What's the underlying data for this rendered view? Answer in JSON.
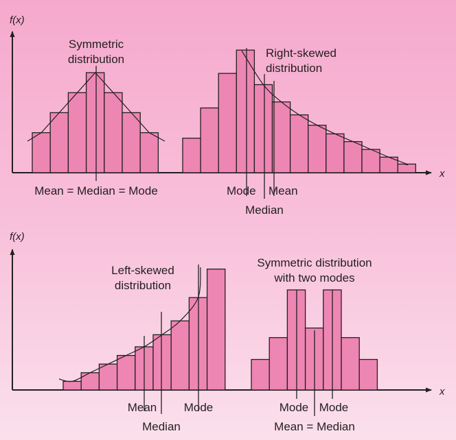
{
  "panels": {
    "top": {
      "y_axis_label": "f(x)",
      "x_axis_label": "x",
      "symmetric": {
        "title_line1": "Symmetric",
        "title_line2": "distribution",
        "marker_label": "Mean = Median = Mode"
      },
      "right_skewed": {
        "title_line1": "Right-skewed",
        "title_line2": "distribution",
        "mode_label": "Mode",
        "mean_label": "Mean",
        "median_label": "Median"
      }
    },
    "bottom": {
      "y_axis_label": "f(x)",
      "x_axis_label": "x",
      "left_skewed": {
        "title_line1": "Left-skewed",
        "title_line2": "distribution",
        "mean_label": "Mean",
        "mode_label": "Mode",
        "median_label": "Median"
      },
      "bimodal": {
        "title_line1": "Symmetric distribution",
        "title_line2": "with two modes",
        "mode_label_1": "Mode",
        "mode_label_2": "Mode",
        "marker_label": "Mean = Median"
      }
    }
  },
  "colors": {
    "bar_fill": "#ee86b4",
    "outline": "#231f20",
    "background_top": "#f6a9cd",
    "background_bottom": "#fbe0ec"
  },
  "chart_data": [
    {
      "type": "bar",
      "values": [
        4,
        6,
        8,
        10,
        8,
        6,
        4
      ],
      "marker": "Mean = Median = Mode",
      "xlabel": "x",
      "ylabel": "f(x)"
    },
    {
      "type": "bar",
      "values": [
        4,
        7.5,
        11.5,
        14.2,
        10.2,
        8.2,
        6.7,
        5.5,
        4.5,
        3.6,
        2.7,
        1.8,
        1.0
      ],
      "markers": [
        "Mode",
        "Median",
        "Mean"
      ],
      "xlabel": "x",
      "ylabel": "f(x)"
    },
    {
      "type": "bar",
      "values": [
        1.0,
        2.0,
        3.0,
        4.0,
        5.0,
        6.4,
        8.0,
        10.7,
        14.0
      ],
      "markers": [
        "Mean",
        "Median",
        "Mode"
      ],
      "xlabel": "x",
      "ylabel": "f(x)"
    },
    {
      "type": "bar",
      "values": [
        3.2,
        5.5,
        10.5,
        6.5,
        10.5,
        5.5,
        3.2
      ],
      "markers": [
        "Mode",
        "Mean = Median",
        "Mode"
      ],
      "xlabel": "x",
      "ylabel": "f(x)"
    }
  ]
}
